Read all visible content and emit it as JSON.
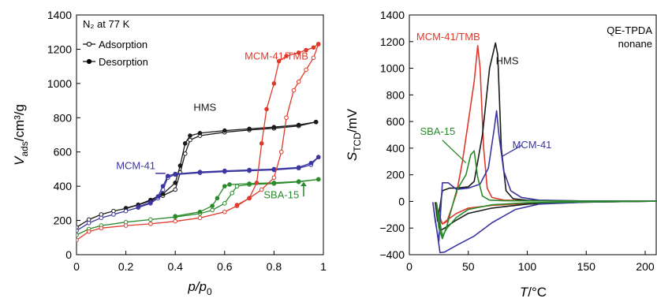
{
  "chart_data": [
    {
      "type": "line",
      "annotation_title": "N₂ at 77 K",
      "xlabel": {
        "main": "p/p",
        "sub": "0"
      },
      "ylabel": {
        "main": "V",
        "sub": "ads",
        "tail": "/cm³/g"
      },
      "xlim": [
        0,
        1
      ],
      "ylim": [
        0,
        1400
      ],
      "xticks": [
        0,
        0.2,
        0.4,
        0.6,
        0.8,
        1
      ],
      "xtick_labels": [
        "0",
        "0.2",
        "0.4",
        "0.6",
        "0.8",
        "1"
      ],
      "yticks": [
        0,
        200,
        400,
        600,
        800,
        1000,
        1200,
        1400
      ],
      "ytick_labels": [
        "0",
        "200",
        "400",
        "600",
        "800",
        "1000",
        "1200",
        "1400"
      ],
      "legend": [
        {
          "label": "Adsorption",
          "marker": "open"
        },
        {
          "label": "Desorption",
          "marker": "filled"
        }
      ],
      "series": [
        {
          "name": "HMS",
          "color": "#1a1a1a",
          "adsorption": [
            [
              0.0,
              160
            ],
            [
              0.05,
              205
            ],
            [
              0.1,
              235
            ],
            [
              0.15,
              255
            ],
            [
              0.2,
              270
            ],
            [
              0.25,
              290
            ],
            [
              0.3,
              315
            ],
            [
              0.35,
              345
            ],
            [
              0.4,
              380
            ],
            [
              0.42,
              480
            ],
            [
              0.44,
              590
            ],
            [
              0.46,
              670
            ],
            [
              0.5,
              695
            ],
            [
              0.6,
              715
            ],
            [
              0.7,
              728
            ],
            [
              0.8,
              738
            ],
            [
              0.9,
              752
            ],
            [
              0.97,
              775
            ]
          ],
          "desorption": [
            [
              0.97,
              775
            ],
            [
              0.9,
              758
            ],
            [
              0.8,
              745
            ],
            [
              0.7,
              735
            ],
            [
              0.6,
              725
            ],
            [
              0.5,
              710
            ],
            [
              0.46,
              695
            ],
            [
              0.44,
              650
            ],
            [
              0.42,
              520
            ],
            [
              0.4,
              420
            ],
            [
              0.35,
              355
            ],
            [
              0.3,
              320
            ],
            [
              0.25,
              292
            ],
            [
              0.2,
              272
            ]
          ]
        },
        {
          "name": "MCM-41",
          "color": "#3a35a0",
          "adsorption": [
            [
              0.0,
              140
            ],
            [
              0.05,
              185
            ],
            [
              0.1,
              215
            ],
            [
              0.15,
              235
            ],
            [
              0.2,
              255
            ],
            [
              0.25,
              275
            ],
            [
              0.3,
              300
            ],
            [
              0.33,
              330
            ],
            [
              0.35,
              380
            ],
            [
              0.37,
              450
            ],
            [
              0.4,
              468
            ],
            [
              0.5,
              478
            ],
            [
              0.6,
              485
            ],
            [
              0.7,
              490
            ],
            [
              0.8,
              495
            ],
            [
              0.9,
              505
            ],
            [
              0.95,
              525
            ],
            [
              0.98,
              570
            ]
          ],
          "desorption": [
            [
              0.98,
              570
            ],
            [
              0.95,
              535
            ],
            [
              0.9,
              510
            ],
            [
              0.8,
              500
            ],
            [
              0.7,
              495
            ],
            [
              0.6,
              490
            ],
            [
              0.5,
              483
            ],
            [
              0.4,
              472
            ],
            [
              0.37,
              460
            ],
            [
              0.35,
              400
            ],
            [
              0.33,
              340
            ],
            [
              0.3,
              305
            ],
            [
              0.25,
              280
            ]
          ]
        },
        {
          "name": "SBA-15",
          "color": "#2a8a2a",
          "adsorption": [
            [
              0.0,
              115
            ],
            [
              0.05,
              150
            ],
            [
              0.1,
              170
            ],
            [
              0.2,
              190
            ],
            [
              0.3,
              205
            ],
            [
              0.4,
              220
            ],
            [
              0.5,
              240
            ],
            [
              0.55,
              260
            ],
            [
              0.6,
              300
            ],
            [
              0.63,
              360
            ],
            [
              0.65,
              400
            ],
            [
              0.7,
              410
            ],
            [
              0.8,
              415
            ],
            [
              0.9,
              425
            ],
            [
              0.98,
              440
            ]
          ],
          "desorption": [
            [
              0.98,
              440
            ],
            [
              0.9,
              428
            ],
            [
              0.8,
              420
            ],
            [
              0.7,
              415
            ],
            [
              0.62,
              410
            ],
            [
              0.6,
              400
            ],
            [
              0.57,
              330
            ],
            [
              0.55,
              285
            ],
            [
              0.5,
              250
            ],
            [
              0.4,
              225
            ]
          ]
        },
        {
          "name": "MCM-41/TMB",
          "color": "#e0392b",
          "adsorption": [
            [
              0.0,
              85
            ],
            [
              0.05,
              135
            ],
            [
              0.1,
              155
            ],
            [
              0.2,
              170
            ],
            [
              0.3,
              180
            ],
            [
              0.4,
              195
            ],
            [
              0.5,
              215
            ],
            [
              0.6,
              250
            ],
            [
              0.65,
              285
            ],
            [
              0.7,
              330
            ],
            [
              0.75,
              380
            ],
            [
              0.8,
              450
            ],
            [
              0.83,
              600
            ],
            [
              0.85,
              800
            ],
            [
              0.88,
              960
            ],
            [
              0.9,
              1010
            ],
            [
              0.93,
              1080
            ],
            [
              0.96,
              1150
            ],
            [
              0.98,
              1230
            ]
          ],
          "desorption": [
            [
              0.98,
              1230
            ],
            [
              0.96,
              1210
            ],
            [
              0.93,
              1195
            ],
            [
              0.9,
              1180
            ],
            [
              0.85,
              1160
            ],
            [
              0.82,
              1130
            ],
            [
              0.8,
              1000
            ],
            [
              0.77,
              850
            ],
            [
              0.75,
              650
            ],
            [
              0.73,
              420
            ],
            [
              0.7,
              330
            ],
            [
              0.65,
              290
            ]
          ]
        }
      ],
      "labels": [
        {
          "text": "HMS",
          "series": "HMS"
        },
        {
          "text": "MCM-41",
          "series": "MCM-41"
        },
        {
          "text": "SBA-15",
          "series": "SBA-15"
        },
        {
          "text": "MCM-41/TMB",
          "series": "MCM-41/TMB"
        }
      ]
    },
    {
      "type": "line",
      "annotation_title": "QE-TPDA",
      "annotation_sub": "nonane",
      "xlabel": {
        "main": "T",
        "tail": "/°C"
      },
      "ylabel": {
        "main": "S",
        "sub": "TCD",
        "tail": "/mV"
      },
      "xlim": [
        0,
        210
      ],
      "ylim": [
        -400,
        1400
      ],
      "xticks": [
        0,
        50,
        100,
        150,
        200
      ],
      "xtick_labels": [
        "0",
        "50",
        "100",
        "150",
        "200"
      ],
      "yticks": [
        -400,
        -200,
        0,
        200,
        400,
        600,
        800,
        1000,
        1200,
        1400
      ],
      "ytick_labels": [
        "−400",
        "−200",
        "0",
        "200",
        "400",
        "600",
        "800",
        "1000",
        "1200",
        "1400"
      ],
      "series": [
        {
          "name": "MCM-41/TMB",
          "color": "#e0392b",
          "points": [
            [
              22,
              -10
            ],
            [
              25,
              -120
            ],
            [
              28,
              -170
            ],
            [
              32,
              -150
            ],
            [
              40,
              60
            ],
            [
              45,
              300
            ],
            [
              50,
              600
            ],
            [
              55,
              900
            ],
            [
              58,
              1170
            ],
            [
              60,
              1000
            ],
            [
              63,
              400
            ],
            [
              66,
              100
            ],
            [
              70,
              30
            ],
            [
              80,
              10
            ],
            [
              100,
              5
            ],
            [
              150,
              2
            ],
            [
              210,
              2
            ],
            [
              150,
              -5
            ],
            [
              100,
              -15
            ],
            [
              70,
              -30
            ],
            [
              50,
              -50
            ],
            [
              40,
              -90
            ],
            [
              32,
              -140
            ],
            [
              28,
              -170
            ]
          ]
        },
        {
          "name": "HMS",
          "color": "#1a1a1a",
          "points": [
            [
              22,
              -10
            ],
            [
              24,
              -150
            ],
            [
              28,
              80
            ],
            [
              34,
              100
            ],
            [
              40,
              100
            ],
            [
              50,
              110
            ],
            [
              55,
              150
            ],
            [
              62,
              500
            ],
            [
              68,
              1000
            ],
            [
              73,
              1190
            ],
            [
              75,
              1100
            ],
            [
              78,
              400
            ],
            [
              82,
              80
            ],
            [
              88,
              20
            ],
            [
              100,
              8
            ],
            [
              150,
              3
            ],
            [
              210,
              2
            ],
            [
              150,
              -5
            ],
            [
              100,
              -20
            ],
            [
              70,
              -50
            ],
            [
              50,
              -90
            ],
            [
              38,
              -150
            ],
            [
              30,
              -200
            ],
            [
              26,
              -220
            ]
          ]
        },
        {
          "name": "MCM-41",
          "color": "#3a35a0",
          "points": [
            [
              20,
              -10
            ],
            [
              22,
              -150
            ],
            [
              25,
              -300
            ],
            [
              28,
              140
            ],
            [
              33,
              140
            ],
            [
              40,
              90
            ],
            [
              50,
              100
            ],
            [
              60,
              130
            ],
            [
              67,
              250
            ],
            [
              72,
              550
            ],
            [
              74,
              680
            ],
            [
              76,
              500
            ],
            [
              80,
              230
            ],
            [
              86,
              80
            ],
            [
              95,
              30
            ],
            [
              110,
              10
            ],
            [
              150,
              3
            ],
            [
              210,
              2
            ],
            [
              150,
              -5
            ],
            [
              110,
              -20
            ],
            [
              90,
              -60
            ],
            [
              70,
              -160
            ],
            [
              55,
              -260
            ],
            [
              40,
              -330
            ],
            [
              30,
              -380
            ],
            [
              26,
              -385
            ]
          ]
        },
        {
          "name": "SBA-15",
          "color": "#2a8a2a",
          "points": [
            [
              23,
              -10
            ],
            [
              25,
              -200
            ],
            [
              28,
              -280
            ],
            [
              32,
              -180
            ],
            [
              40,
              80
            ],
            [
              48,
              200
            ],
            [
              52,
              350
            ],
            [
              55,
              380
            ],
            [
              58,
              180
            ],
            [
              62,
              40
            ],
            [
              68,
              10
            ],
            [
              80,
              5
            ],
            [
              150,
              2
            ],
            [
              210,
              2
            ],
            [
              150,
              -4
            ],
            [
              100,
              -10
            ],
            [
              70,
              -25
            ],
            [
              50,
              -60
            ],
            [
              40,
              -120
            ],
            [
              32,
              -200
            ],
            [
              28,
              -260
            ]
          ]
        }
      ],
      "labels": [
        {
          "text": "MCM-41/TMB",
          "series": "MCM-41/TMB"
        },
        {
          "text": "HMS",
          "series": "HMS"
        },
        {
          "text": "SBA-15",
          "series": "SBA-15"
        },
        {
          "text": "MCM-41",
          "series": "MCM-41"
        }
      ]
    }
  ]
}
